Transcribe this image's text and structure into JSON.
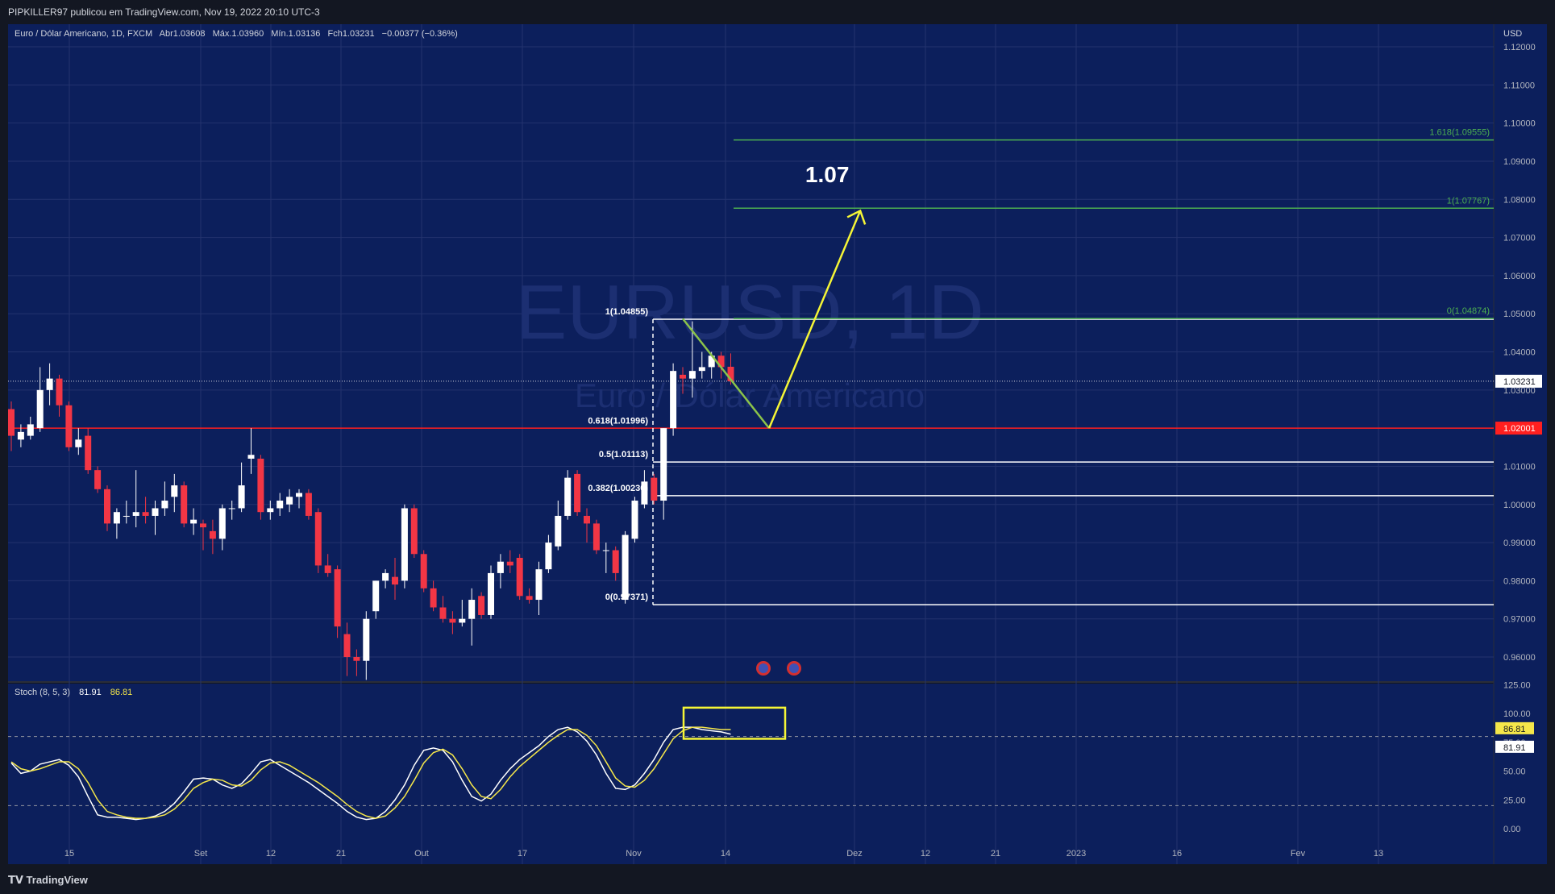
{
  "header": {
    "published_by": "PIPKILLER97 publicou em TradingView.com, Nov 19, 2022 20:10 UTC-3"
  },
  "legend": {
    "symbol": "Euro / Dólar Americano, 1D, FXCM",
    "open_label": "Abr",
    "open": "1.03608",
    "high_label": "Máx.",
    "high": "1.03960",
    "low_label": "Mín.",
    "low": "1.03136",
    "close_label": "Fch",
    "close": "1.03231",
    "change": "−0.00377 (−0.36%)"
  },
  "watermark": {
    "symbol": "EURUSD, 1D",
    "name": "Euro / Dólar Americano"
  },
  "footer": {
    "brand": "TradingView"
  },
  "colors": {
    "background": "#131722",
    "pane": "#0c1f5c",
    "grid": "#23336e",
    "up": "#ffffff",
    "down": "#f23645",
    "support": "#ff1f1f",
    "fib_green": "#4caf50",
    "projection": "#f5f536",
    "stoch_k": "#ffffff",
    "stoch_d": "#f5e74a"
  },
  "chart_data": [
    {
      "type": "candlestick",
      "currency": "USD",
      "ylim": [
        0.955,
        1.125
      ],
      "y_ticks": [
        "1.12000",
        "1.11000",
        "1.10000",
        "1.09000",
        "1.08000",
        "1.07000",
        "1.06000",
        "1.05000",
        "1.04000",
        "1.03000",
        "1.01000",
        "1.00000",
        "0.99000",
        "0.98000",
        "0.97000",
        "0.96000"
      ],
      "x_ticks": [
        "15",
        "Set",
        "12",
        "21",
        "Out",
        "17",
        "Nov",
        "14",
        "Dez",
        "12",
        "21",
        "2023",
        "16",
        "Fev",
        "13"
      ],
      "last_price": "1.03231",
      "support_level": {
        "value": 1.02001,
        "label": "1.02001"
      },
      "candles": [
        {
          "o": 1.025,
          "h": 1.027,
          "l": 1.014,
          "c": 1.018
        },
        {
          "o": 1.017,
          "h": 1.021,
          "l": 1.015,
          "c": 1.019
        },
        {
          "o": 1.018,
          "h": 1.023,
          "l": 1.017,
          "c": 1.021
        },
        {
          "o": 1.02,
          "h": 1.036,
          "l": 1.019,
          "c": 1.03
        },
        {
          "o": 1.03,
          "h": 1.037,
          "l": 1.026,
          "c": 1.033
        },
        {
          "o": 1.033,
          "h": 1.034,
          "l": 1.023,
          "c": 1.026
        },
        {
          "o": 1.026,
          "h": 1.027,
          "l": 1.014,
          "c": 1.015
        },
        {
          "o": 1.015,
          "h": 1.02,
          "l": 1.013,
          "c": 1.017
        },
        {
          "o": 1.018,
          "h": 1.02,
          "l": 1.008,
          "c": 1.009
        },
        {
          "o": 1.009,
          "h": 1.01,
          "l": 1.003,
          "c": 1.004
        },
        {
          "o": 1.004,
          "h": 1.005,
          "l": 0.993,
          "c": 0.995
        },
        {
          "o": 0.995,
          "h": 0.999,
          "l": 0.991,
          "c": 0.998
        },
        {
          "o": 0.997,
          "h": 1.001,
          "l": 0.995,
          "c": 0.997
        },
        {
          "o": 0.997,
          "h": 1.009,
          "l": 0.994,
          "c": 0.998
        },
        {
          "o": 0.998,
          "h": 1.002,
          "l": 0.995,
          "c": 0.997
        },
        {
          "o": 0.997,
          "h": 1.001,
          "l": 0.992,
          "c": 0.999
        },
        {
          "o": 0.999,
          "h": 1.006,
          "l": 0.997,
          "c": 1.001
        },
        {
          "o": 1.002,
          "h": 1.008,
          "l": 0.998,
          "c": 1.005
        },
        {
          "o": 1.005,
          "h": 1.006,
          "l": 0.994,
          "c": 0.995
        },
        {
          "o": 0.995,
          "h": 0.999,
          "l": 0.992,
          "c": 0.996
        },
        {
          "o": 0.995,
          "h": 0.996,
          "l": 0.988,
          "c": 0.994
        },
        {
          "o": 0.993,
          "h": 0.996,
          "l": 0.987,
          "c": 0.991
        },
        {
          "o": 0.991,
          "h": 1.0,
          "l": 0.988,
          "c": 0.999
        },
        {
          "o": 0.999,
          "h": 1.001,
          "l": 0.996,
          "c": 0.999
        },
        {
          "o": 0.999,
          "h": 1.011,
          "l": 0.998,
          "c": 1.005
        },
        {
          "o": 1.012,
          "h": 1.02,
          "l": 1.008,
          "c": 1.013
        },
        {
          "o": 1.012,
          "h": 1.013,
          "l": 0.996,
          "c": 0.998
        },
        {
          "o": 0.998,
          "h": 1.001,
          "l": 0.996,
          "c": 0.999
        },
        {
          "o": 0.999,
          "h": 1.003,
          "l": 0.997,
          "c": 1.001
        },
        {
          "o": 1.0,
          "h": 1.004,
          "l": 0.998,
          "c": 1.002
        },
        {
          "o": 1.002,
          "h": 1.004,
          "l": 0.999,
          "c": 1.003
        },
        {
          "o": 1.003,
          "h": 1.004,
          "l": 0.996,
          "c": 0.997
        },
        {
          "o": 0.998,
          "h": 0.999,
          "l": 0.982,
          "c": 0.984
        },
        {
          "o": 0.984,
          "h": 0.987,
          "l": 0.981,
          "c": 0.982
        },
        {
          "o": 0.983,
          "h": 0.984,
          "l": 0.965,
          "c": 0.968
        },
        {
          "o": 0.966,
          "h": 0.969,
          "l": 0.955,
          "c": 0.96
        },
        {
          "o": 0.96,
          "h": 0.962,
          "l": 0.955,
          "c": 0.959
        },
        {
          "o": 0.959,
          "h": 0.972,
          "l": 0.954,
          "c": 0.97
        },
        {
          "o": 0.972,
          "h": 0.98,
          "l": 0.97,
          "c": 0.98
        },
        {
          "o": 0.98,
          "h": 0.983,
          "l": 0.978,
          "c": 0.982
        },
        {
          "o": 0.981,
          "h": 0.986,
          "l": 0.975,
          "c": 0.979
        },
        {
          "o": 0.98,
          "h": 1.0,
          "l": 0.978,
          "c": 0.999
        },
        {
          "o": 0.999,
          "h": 1.0,
          "l": 0.986,
          "c": 0.987
        },
        {
          "o": 0.987,
          "h": 0.988,
          "l": 0.977,
          "c": 0.978
        },
        {
          "o": 0.978,
          "h": 0.98,
          "l": 0.972,
          "c": 0.973
        },
        {
          "o": 0.973,
          "h": 0.976,
          "l": 0.969,
          "c": 0.97
        },
        {
          "o": 0.97,
          "h": 0.972,
          "l": 0.966,
          "c": 0.969
        },
        {
          "o": 0.969,
          "h": 0.975,
          "l": 0.968,
          "c": 0.97
        },
        {
          "o": 0.97,
          "h": 0.978,
          "l": 0.963,
          "c": 0.975
        },
        {
          "o": 0.976,
          "h": 0.977,
          "l": 0.97,
          "c": 0.971
        },
        {
          "o": 0.971,
          "h": 0.984,
          "l": 0.97,
          "c": 0.982
        },
        {
          "o": 0.982,
          "h": 0.987,
          "l": 0.978,
          "c": 0.985
        },
        {
          "o": 0.985,
          "h": 0.988,
          "l": 0.982,
          "c": 0.984
        },
        {
          "o": 0.986,
          "h": 0.987,
          "l": 0.975,
          "c": 0.976
        },
        {
          "o": 0.976,
          "h": 0.978,
          "l": 0.974,
          "c": 0.975
        },
        {
          "o": 0.975,
          "h": 0.985,
          "l": 0.971,
          "c": 0.983
        },
        {
          "o": 0.983,
          "h": 0.992,
          "l": 0.982,
          "c": 0.99
        },
        {
          "o": 0.989,
          "h": 1.001,
          "l": 0.988,
          "c": 0.997
        },
        {
          "o": 0.997,
          "h": 1.009,
          "l": 0.996,
          "c": 1.007
        },
        {
          "o": 1.008,
          "h": 1.009,
          "l": 0.997,
          "c": 0.998
        },
        {
          "o": 0.997,
          "h": 0.999,
          "l": 0.99,
          "c": 0.995
        },
        {
          "o": 0.995,
          "h": 0.996,
          "l": 0.987,
          "c": 0.988
        },
        {
          "o": 0.988,
          "h": 0.99,
          "l": 0.982,
          "c": 0.988
        },
        {
          "o": 0.988,
          "h": 0.989,
          "l": 0.98,
          "c": 0.982
        },
        {
          "o": 0.975,
          "h": 0.993,
          "l": 0.974,
          "c": 0.992
        },
        {
          "o": 0.991,
          "h": 1.002,
          "l": 0.99,
          "c": 1.001
        },
        {
          "o": 1.0,
          "h": 1.009,
          "l": 0.999,
          "c": 1.006
        },
        {
          "o": 1.007,
          "h": 1.008,
          "l": 1.0,
          "c": 1.001
        },
        {
          "o": 1.001,
          "h": 1.02,
          "l": 0.996,
          "c": 1.02
        },
        {
          "o": 1.02,
          "h": 1.037,
          "l": 1.018,
          "c": 1.035
        },
        {
          "o": 1.034,
          "h": 1.036,
          "l": 1.029,
          "c": 1.033
        },
        {
          "o": 1.033,
          "h": 1.048,
          "l": 1.028,
          "c": 1.035
        },
        {
          "o": 1.035,
          "h": 1.04,
          "l": 1.033,
          "c": 1.036
        },
        {
          "o": 1.036,
          "h": 1.04,
          "l": 1.033,
          "c": 1.039
        },
        {
          "o": 1.039,
          "h": 1.04,
          "l": 1.033,
          "c": 1.036
        },
        {
          "o": 1.0361,
          "h": 1.0396,
          "l": 1.0314,
          "c": 1.0323
        }
      ],
      "fib_retracement": [
        {
          "label": "1(1.04855)",
          "value": 1.04855
        },
        {
          "label": "0.618(1.01996)",
          "value": 1.01996
        },
        {
          "label": "0.5(1.01113)",
          "value": 1.01113
        },
        {
          "label": "0.382(1.00230)",
          "value": 1.0023
        },
        {
          "label": "0(0.97371)",
          "value": 0.97371
        }
      ],
      "fib_extension": [
        {
          "label": "1.618(1.09555)",
          "value": 1.09555
        },
        {
          "label": "1(1.07767)",
          "value": 1.07767
        },
        {
          "label": "0(1.04874)",
          "value": 1.04874
        }
      ],
      "projection": {
        "label": "1.07",
        "path": [
          {
            "bar": 70,
            "price": 1.0487
          },
          {
            "bar": 79,
            "price": 1.02
          },
          {
            "bar": 88.5,
            "price": 1.077
          }
        ]
      }
    },
    {
      "type": "line",
      "indicator_label": "Stoch (8, 5, 3)",
      "k_value": "81.91",
      "d_value": "86.81",
      "ylim": [
        -10,
        130
      ],
      "y_ticks": [
        "125.00",
        "100.00",
        "75.00",
        "50.00",
        "25.00",
        "0.00"
      ],
      "bands": [
        80,
        20
      ],
      "series": [
        {
          "values": [
            57,
            48,
            50,
            56,
            58,
            60,
            55,
            45,
            28,
            12,
            10,
            10,
            9,
            8,
            9,
            11,
            15,
            22,
            32,
            43,
            44,
            43,
            38,
            35,
            39,
            48,
            58,
            60,
            55,
            50,
            45,
            40,
            34,
            28,
            22,
            15,
            10,
            8,
            9,
            15,
            25,
            38,
            55,
            68,
            70,
            68,
            58,
            42,
            28,
            24,
            30,
            42,
            52,
            60,
            66,
            72,
            80,
            86,
            88,
            84,
            76,
            64,
            48,
            35,
            34,
            38,
            48,
            60,
            75,
            86,
            88,
            88,
            86,
            85,
            84,
            82
          ]
        },
        {
          "values": [
            58,
            52,
            50,
            52,
            55,
            58,
            58,
            52,
            40,
            25,
            15,
            12,
            10,
            9,
            9,
            10,
            12,
            17,
            25,
            35,
            40,
            43,
            42,
            38,
            37,
            42,
            51,
            57,
            58,
            55,
            50,
            45,
            40,
            34,
            28,
            21,
            15,
            11,
            9,
            11,
            18,
            28,
            42,
            57,
            66,
            69,
            64,
            52,
            38,
            28,
            26,
            34,
            45,
            54,
            61,
            68,
            75,
            81,
            86,
            86,
            81,
            72,
            58,
            44,
            37,
            36,
            42,
            52,
            65,
            78,
            85,
            88,
            88,
            87,
            86,
            86
          ]
        }
      ]
    }
  ]
}
